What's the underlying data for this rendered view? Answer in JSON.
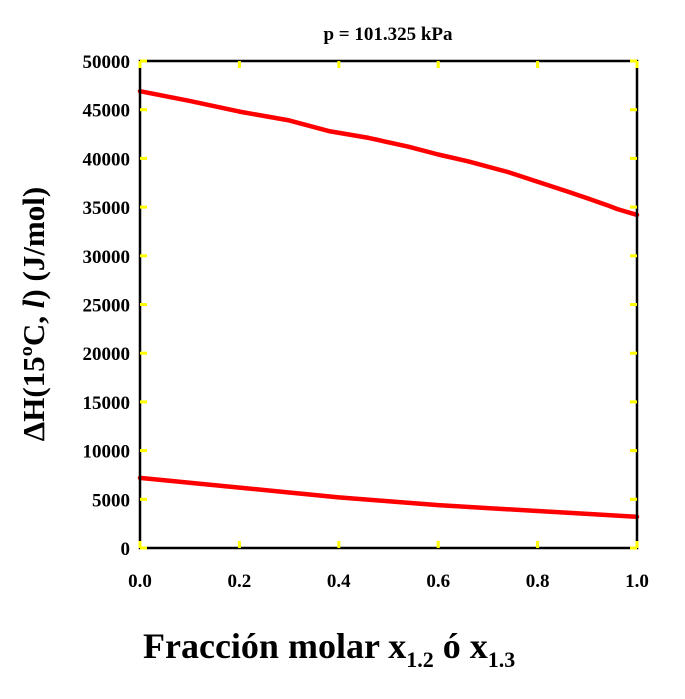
{
  "chart_data": {
    "type": "line",
    "title": "p = 101.325  kPa",
    "xlabel": {
      "main": "Fracción molar  x",
      "sub1": "1.2",
      "mid": " ó x",
      "sub2": "1.3"
    },
    "ylabel": {
      "part1": "ΔH(15ºC, ",
      "italic": "l",
      "part2": ")   (J/mol)"
    },
    "xlim": [
      0.0,
      1.0
    ],
    "ylim": [
      0,
      50000
    ],
    "x_ticks": [
      "0.0",
      "0.2",
      "0.4",
      "0.6",
      "0.8",
      "1.0"
    ],
    "y_ticks": [
      "0",
      "5000",
      "10000",
      "15000",
      "20000",
      "25000",
      "30000",
      "35000",
      "40000",
      "45000",
      "50000"
    ],
    "grid": false,
    "series": [
      {
        "color": "#ff0000",
        "x": [
          0.0,
          0.1,
          0.2,
          0.3,
          0.38,
          0.46,
          0.54,
          0.6,
          0.66,
          0.74,
          0.8,
          0.86,
          0.9,
          0.94,
          0.96,
          0.98,
          1.0
        ],
        "y": [
          46900,
          45900,
          44800,
          43900,
          42800,
          42100,
          41200,
          40400,
          39700,
          38600,
          37600,
          36600,
          35900,
          35200,
          34800,
          34500,
          34200
        ]
      },
      {
        "color": "#ff0000",
        "x": [
          0.0,
          0.1,
          0.2,
          0.3,
          0.4,
          0.5,
          0.6,
          0.7,
          0.8,
          0.9,
          1.0
        ],
        "y": [
          7200,
          6700,
          6200,
          5700,
          5200,
          4800,
          4400,
          4100,
          3800,
          3500,
          3200
        ]
      }
    ],
    "tick_color": "#ffff00",
    "axis_color": "#000000"
  }
}
